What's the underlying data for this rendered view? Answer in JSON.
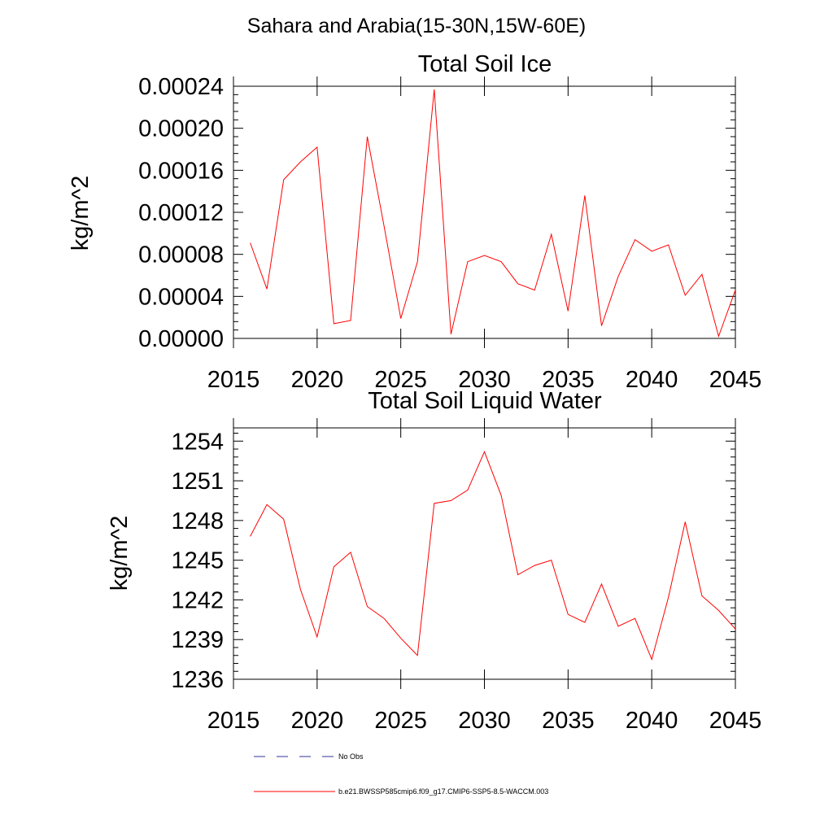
{
  "suptitle": "Sahara and Arabia(15-30N,15W-60E)",
  "legend": [
    {
      "label": "No Obs",
      "color": "#333399",
      "style": "dashed"
    },
    {
      "label": "b.e21.BWSSP585cmip6.f09_g17.CMIP6-SSP5-8.5-WACCM.003",
      "color": "#ff0000",
      "style": "solid"
    }
  ],
  "chart_data": [
    {
      "type": "line",
      "title": "Total Soil Ice",
      "xlabel": "",
      "ylabel": "kg/m^2",
      "xlim": [
        2015,
        2045
      ],
      "ylim": [
        0,
        0.00024
      ],
      "xticks": [
        2015,
        2020,
        2025,
        2030,
        2035,
        2040,
        2045
      ],
      "xtick_labels": [
        "2015",
        "2020",
        "2025",
        "2030",
        "2035",
        "2040",
        "2045"
      ],
      "yticks": [
        0,
        4e-05,
        8e-05,
        0.00012,
        0.00016,
        0.0002,
        0.00024
      ],
      "ytick_labels": [
        "0.00000",
        "0.00004",
        "0.00008",
        "0.00012",
        "0.00016",
        "0.00020",
        "0.00024"
      ],
      "grid": false,
      "series": [
        {
          "name": "b.e21.BWSSP585cmip6.f09_g17.CMIP6-SSP5-8.5-WACCM.003",
          "color": "#ff0000",
          "x": [
            2016,
            2017,
            2018,
            2019,
            2020,
            2021,
            2022,
            2023,
            2024,
            2025,
            2026,
            2027,
            2028,
            2029,
            2030,
            2031,
            2032,
            2033,
            2034,
            2035,
            2036,
            2037,
            2038,
            2039,
            2040,
            2041,
            2042,
            2043,
            2044,
            2045
          ],
          "y": [
            9.1e-05,
            4.7e-05,
            0.000151,
            0.000168,
            0.000182,
            1.4e-05,
            1.7e-05,
            0.000192,
            0.000107,
            1.9e-05,
            7.3e-05,
            0.000237,
            4e-06,
            7.3e-05,
            7.9e-05,
            7.3e-05,
            5.2e-05,
            4.6e-05,
            9.9e-05,
            2.6e-05,
            0.000136,
            1.2e-05,
            5.9e-05,
            9.4e-05,
            8.3e-05,
            8.9e-05,
            4.1e-05,
            6.1e-05,
            2e-06,
            4.6e-05
          ]
        }
      ]
    },
    {
      "type": "line",
      "title": "Total Soil Liquid Water",
      "xlabel": "",
      "ylabel": "kg/m^2",
      "xlim": [
        2015,
        2045
      ],
      "ylim": [
        1236,
        1255
      ],
      "xticks": [
        2015,
        2020,
        2025,
        2030,
        2035,
        2040,
        2045
      ],
      "xtick_labels": [
        "2015",
        "2020",
        "2025",
        "2030",
        "2035",
        "2040",
        "2045"
      ],
      "yticks": [
        1236,
        1239,
        1242,
        1245,
        1248,
        1251,
        1254
      ],
      "ytick_labels": [
        "1236",
        "1239",
        "1242",
        "1245",
        "1248",
        "1251",
        "1254"
      ],
      "grid": false,
      "series": [
        {
          "name": "b.e21.BWSSP585cmip6.f09_g17.CMIP6-SSP5-8.5-WACCM.003",
          "color": "#ff0000",
          "x": [
            2016,
            2017,
            2018,
            2019,
            2020,
            2021,
            2022,
            2023,
            2024,
            2025,
            2026,
            2027,
            2028,
            2029,
            2030,
            2031,
            2032,
            2033,
            2034,
            2035,
            2036,
            2037,
            2038,
            2039,
            2040,
            2041,
            2042,
            2043,
            2044,
            2045
          ],
          "y": [
            1246.8,
            1249.2,
            1248.1,
            1242.8,
            1239.2,
            1244.5,
            1245.6,
            1241.5,
            1240.6,
            1239.1,
            1237.8,
            1249.3,
            1249.5,
            1250.3,
            1253.2,
            1249.9,
            1243.9,
            1244.6,
            1245.0,
            1240.9,
            1240.3,
            1243.2,
            1240.0,
            1240.6,
            1237.5,
            1242.2,
            1247.9,
            1242.3,
            1241.2,
            1239.8
          ]
        }
      ]
    }
  ]
}
